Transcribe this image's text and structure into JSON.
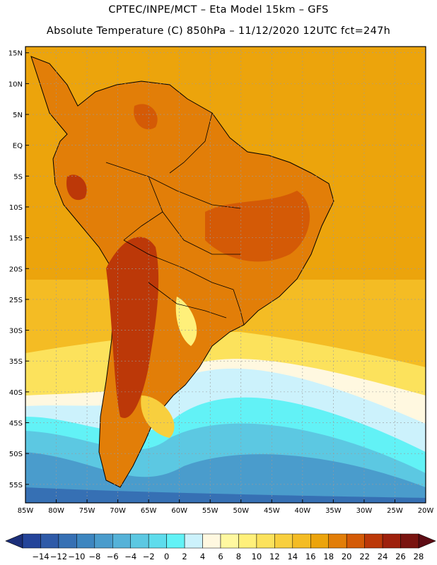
{
  "header": {
    "line1": "CPTEC/INPE/MCT –  Eta Model 15km – GFS",
    "line2": "Absolute Temperature (C) 850hPa – 11/12/2020 12UTC fct=247h"
  },
  "map": {
    "lat_labels": [
      "15N",
      "10N",
      "5N",
      "EQ",
      "5S",
      "10S",
      "15S",
      "20S",
      "25S",
      "30S",
      "35S",
      "40S",
      "45S",
      "50S",
      "55S"
    ],
    "lon_labels": [
      "85W",
      "80W",
      "75W",
      "70W",
      "65W",
      "60W",
      "55W",
      "50W",
      "45W",
      "40W",
      "35W",
      "30W",
      "25W",
      "20W"
    ],
    "lon_range": [
      -85,
      -20
    ],
    "lat_range": [
      -58,
      16
    ],
    "grid": true
  },
  "colorbar": {
    "labels": [
      "-14",
      "-12",
      "-10",
      "-8",
      "-6",
      "-4",
      "-2",
      "0",
      "2",
      "4",
      "6",
      "8",
      "10",
      "12",
      "14",
      "16",
      "18",
      "20",
      "22",
      "24",
      "26",
      "28"
    ],
    "colors": [
      "#24449a",
      "#2e5aa8",
      "#3670b4",
      "#3d86c0",
      "#4a9ccc",
      "#55b2d8",
      "#5cc8e2",
      "#5edcec",
      "#62f2f6",
      "#ccf2fc",
      "#fff8e0",
      "#fff8a0",
      "#fff07a",
      "#fce25c",
      "#f8cf3e",
      "#f4bc24",
      "#eca40c",
      "#e27e08",
      "#d45a06",
      "#bc3808",
      "#9e200c",
      "#7a1410"
    ],
    "under_color": "#1c2f7a",
    "over_color": "#5e0c14"
  }
}
